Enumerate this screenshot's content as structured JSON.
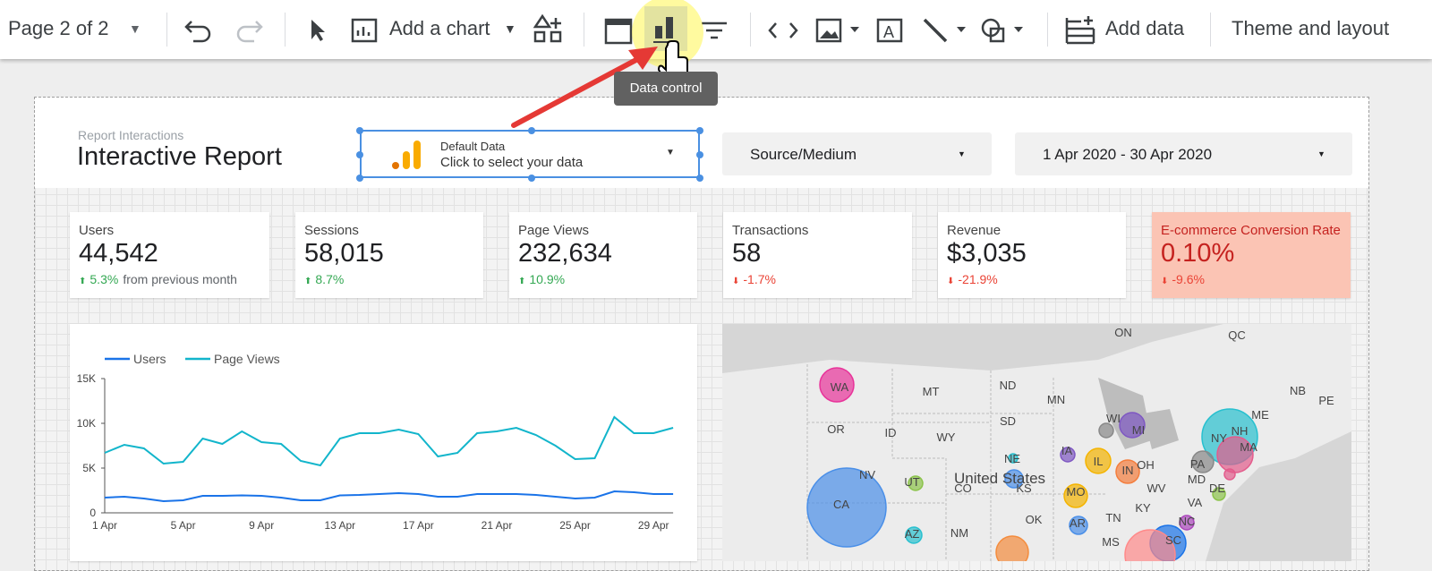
{
  "toolbar": {
    "page": "Page 2 of 2",
    "add_chart": "Add a chart",
    "add_data": "Add data",
    "theme": "Theme and layout",
    "tooltip": "Data control"
  },
  "header": {
    "subtitle": "Report Interactions",
    "title": "Interactive Report"
  },
  "data_control": {
    "name": "Default Data",
    "hint": "Click to select your data"
  },
  "filters": [
    "Source/Medium",
    "1 Apr 2020 - 30 Apr 2020"
  ],
  "scorecards": [
    {
      "label": "Users",
      "value": "44,542",
      "delta": "5.3%",
      "note": "from previous month",
      "trend": "up"
    },
    {
      "label": "Sessions",
      "value": "58,015",
      "delta": "8.7%",
      "trend": "up"
    },
    {
      "label": "Page Views",
      "value": "232,634",
      "delta": "10.9%",
      "trend": "up"
    },
    {
      "label": "Transactions",
      "value": "58",
      "delta": "-1.7%",
      "trend": "down"
    },
    {
      "label": "Revenue",
      "value": "$3,035",
      "delta": "-21.9%",
      "trend": "down"
    },
    {
      "label": "E-commerce Conversion Rate",
      "value": "0.10%",
      "delta": "-9.6%",
      "trend": "down",
      "highlight": true
    }
  ],
  "chart_data": {
    "type": "line",
    "categories": [
      "1 Apr",
      null,
      null,
      null,
      "5 Apr",
      null,
      null,
      null,
      "9 Apr",
      null,
      null,
      null,
      "13 Apr",
      null,
      null,
      null,
      "17 Apr",
      null,
      null,
      null,
      "21 Apr",
      null,
      null,
      null,
      "25 Apr",
      null,
      null,
      null,
      "29 Apr",
      null
    ],
    "series": [
      {
        "name": "Users",
        "color": "#1a73e8",
        "values": [
          1700,
          1800,
          1600,
          1300,
          1400,
          1900,
          1900,
          1950,
          1900,
          1700,
          1400,
          1400,
          1950,
          2000,
          2100,
          2200,
          2100,
          1800,
          1800,
          2100,
          2100,
          2100,
          2000,
          1800,
          1600,
          1700,
          2400,
          2300,
          2100,
          2100
        ]
      },
      {
        "name": "Page Views",
        "color": "#12b5cb",
        "values": [
          6700,
          7600,
          7200,
          5500,
          5700,
          8300,
          7700,
          9100,
          7900,
          7700,
          5800,
          5300,
          8300,
          8900,
          8900,
          9300,
          8800,
          6300,
          6700,
          8900,
          9100,
          9500,
          8700,
          7500,
          6000,
          6100,
          10700,
          8900,
          8900,
          9500
        ]
      }
    ],
    "ylim": [
      0,
      15000
    ],
    "yticks": [
      0,
      {
        "value": 5000,
        "label": "5K"
      },
      {
        "value": 10000,
        "label": "10K"
      },
      {
        "value": 15000,
        "label": "15K"
      }
    ],
    "legend": "top-left"
  },
  "map": {
    "country": "United States",
    "labels": [
      "ON",
      "QC",
      "WA",
      "MT",
      "ND",
      "MN",
      "NB",
      "PE",
      "ME",
      "SD",
      "WI",
      "MI",
      "NY",
      "NH",
      "OR",
      "ID",
      "WY",
      "IA",
      "MA",
      "NE",
      "IL",
      "IN",
      "OH",
      "PA",
      "NV",
      "UT",
      "CO",
      "KS",
      "MO",
      "WV",
      "MD",
      "DE",
      "CA",
      "VA",
      "KY",
      "OK",
      "AR",
      "TN",
      "NC",
      "AZ",
      "NM",
      "MS",
      "SC"
    ]
  }
}
